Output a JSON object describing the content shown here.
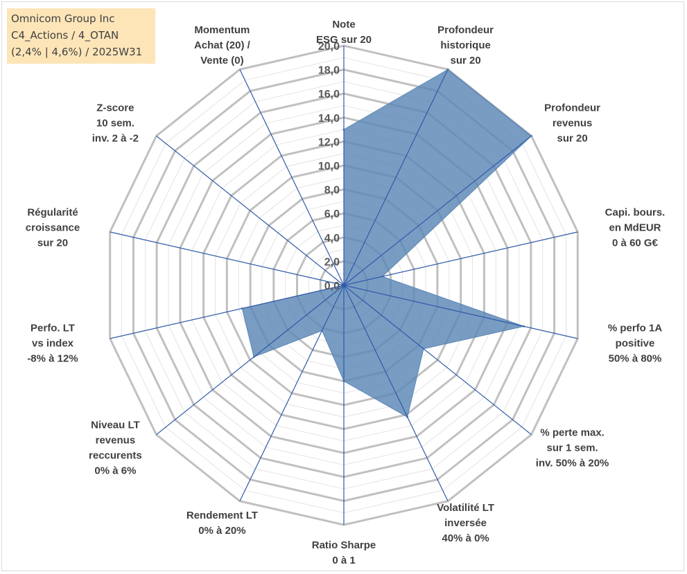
{
  "info_box": {
    "line1": "Omnicom Group Inc",
    "line2": "C4_Actions / 4_OTAN",
    "line3": "(2,4% | 4,6%) / 2025W31"
  },
  "colors": {
    "fill": "#5b86b6",
    "spoke": "#2e5aa8",
    "grid": "#c0c0c0",
    "minor_grid": "#e3e3e3",
    "info_bg": "#fde5b8"
  },
  "chart_data": {
    "type": "radar",
    "rmin": 0,
    "rmax": 20,
    "grid": true,
    "ticks": [
      "0,0",
      "2,0",
      "4,0",
      "6,0",
      "8,0",
      "10,0",
      "12,0",
      "14,0",
      "16,0",
      "18,0",
      "20,0"
    ],
    "axes": [
      {
        "label": [
          "Note",
          "ESG sur 20"
        ],
        "value": 13.0
      },
      {
        "label": [
          "Profondeur",
          "historique",
          "sur 20"
        ],
        "value": 20.0
      },
      {
        "label": [
          "Profondeur",
          "revenus",
          "sur 20"
        ],
        "value": 20.0
      },
      {
        "label": [
          "Capi. bours.",
          "en MdEUR",
          "0 à 60 G€"
        ],
        "value": 3.3
      },
      {
        "label": [
          "% perfo 1A",
          "positive",
          "50% à 80%"
        ],
        "value": 15.4
      },
      {
        "label": [
          "% perte max.",
          "sur 1 sem.",
          "inv. 50% à 20%"
        ],
        "value": 8.5
      },
      {
        "label": [
          "Volatilité LT",
          "inversée",
          "40% à 0%"
        ],
        "value": 12.2
      },
      {
        "label": [
          "Ratio Sharpe",
          "0 à 1"
        ],
        "value": 8.0
      },
      {
        "label": [
          "Rendement LT",
          "0% à 20%"
        ],
        "value": 4.2
      },
      {
        "label": [
          "Niveau LT",
          "revenus",
          "reccurents",
          "0% à 6%"
        ],
        "value": 9.6
      },
      {
        "label": [
          "Perfo. LT",
          "vs index",
          "-8% à 12%"
        ],
        "value": 8.7
      },
      {
        "label": [
          "Régularité",
          "croissance",
          "sur 20"
        ],
        "value": 0.0
      },
      {
        "label": [
          "Z-score",
          "10 sem.",
          "inv. 2 à -2"
        ],
        "value": 0.0
      },
      {
        "label": [
          "Momentum",
          "Achat (20) /",
          "Vente (0)"
        ],
        "value": 0.0
      }
    ]
  }
}
